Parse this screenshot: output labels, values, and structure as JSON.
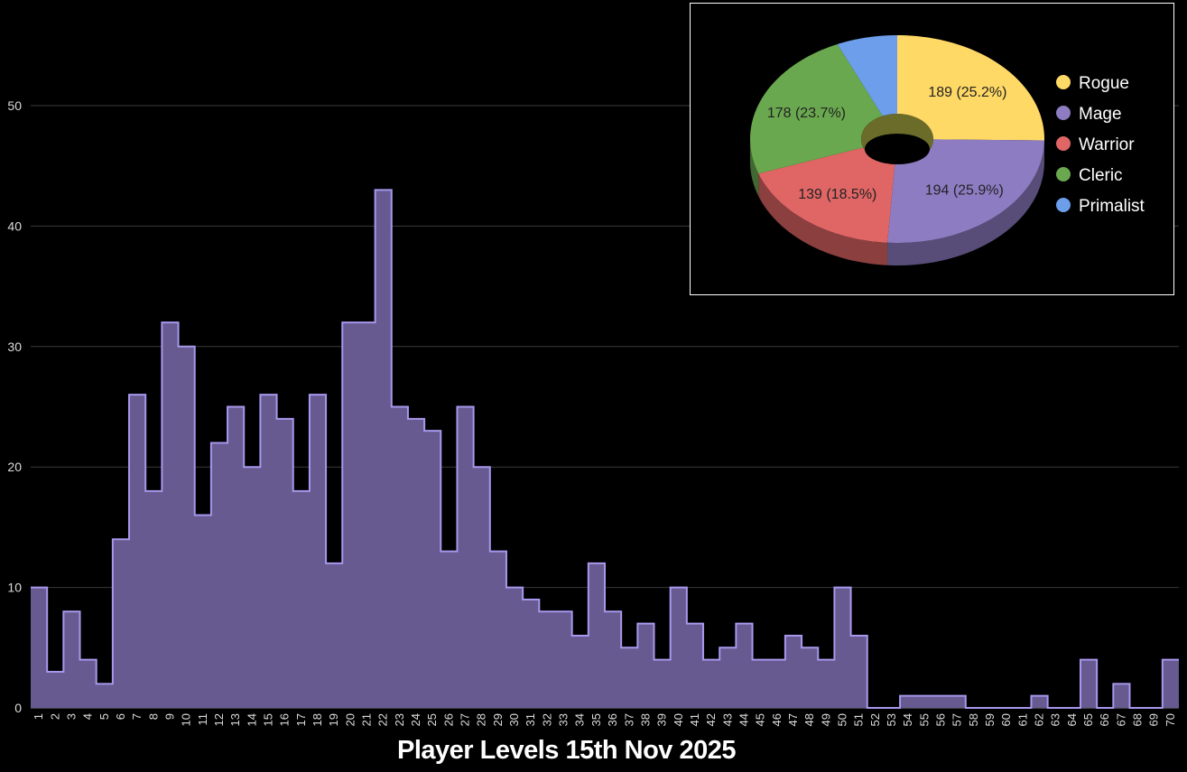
{
  "title": "Player Levels 15th Nov 2025",
  "chart_data": [
    {
      "type": "area",
      "title": "Player Levels 15th Nov 2025",
      "xlabel": "",
      "ylabel": "",
      "ylim": [
        0,
        55
      ],
      "yticks": [
        0,
        10,
        20,
        30,
        40,
        50
      ],
      "grid": true,
      "step": true,
      "color": "#7566b3",
      "categories": [
        "1",
        "2",
        "3",
        "4",
        "5",
        "6",
        "7",
        "8",
        "9",
        "10",
        "11",
        "12",
        "13",
        "14",
        "15",
        "16",
        "17",
        "18",
        "19",
        "20",
        "21",
        "22",
        "23",
        "24",
        "25",
        "26",
        "27",
        "28",
        "29",
        "30",
        "31",
        "32",
        "33",
        "34",
        "35",
        "36",
        "37",
        "38",
        "39",
        "40",
        "41",
        "42",
        "43",
        "44",
        "45",
        "46",
        "47",
        "48",
        "49",
        "50",
        "51",
        "52",
        "53",
        "54",
        "55",
        "56",
        "57",
        "58",
        "59",
        "60",
        "61",
        "62",
        "63",
        "64",
        "65",
        "66",
        "67",
        "68",
        "69",
        "70"
      ],
      "values": [
        10,
        3,
        8,
        4,
        2,
        14,
        26,
        18,
        32,
        30,
        16,
        22,
        25,
        20,
        26,
        24,
        18,
        26,
        12,
        32,
        32,
        43,
        25,
        24,
        23,
        13,
        25,
        20,
        13,
        10,
        9,
        8,
        8,
        6,
        12,
        8,
        5,
        7,
        4,
        10,
        7,
        4,
        5,
        7,
        4,
        4,
        6,
        5,
        4,
        10,
        6,
        0,
        0,
        1,
        1,
        1,
        1,
        0,
        0,
        0,
        0,
        1,
        0,
        0,
        4,
        0,
        2,
        0,
        0,
        4
      ]
    },
    {
      "type": "pie",
      "style": "3d-donut",
      "legend_position": "right",
      "labels": [
        "Rogue",
        "Mage",
        "Warrior",
        "Cleric",
        "Primalist"
      ],
      "values": [
        189,
        194,
        139,
        178,
        50
      ],
      "value_labels": [
        "189 (25.2%)",
        "194 (25.9%)",
        "139 (18.5%)",
        "178 (23.7%)",
        ""
      ],
      "colors": [
        "#ffd966",
        "#8e7cc3",
        "#e06666",
        "#6aa84f",
        "#6d9eeb"
      ]
    }
  ]
}
